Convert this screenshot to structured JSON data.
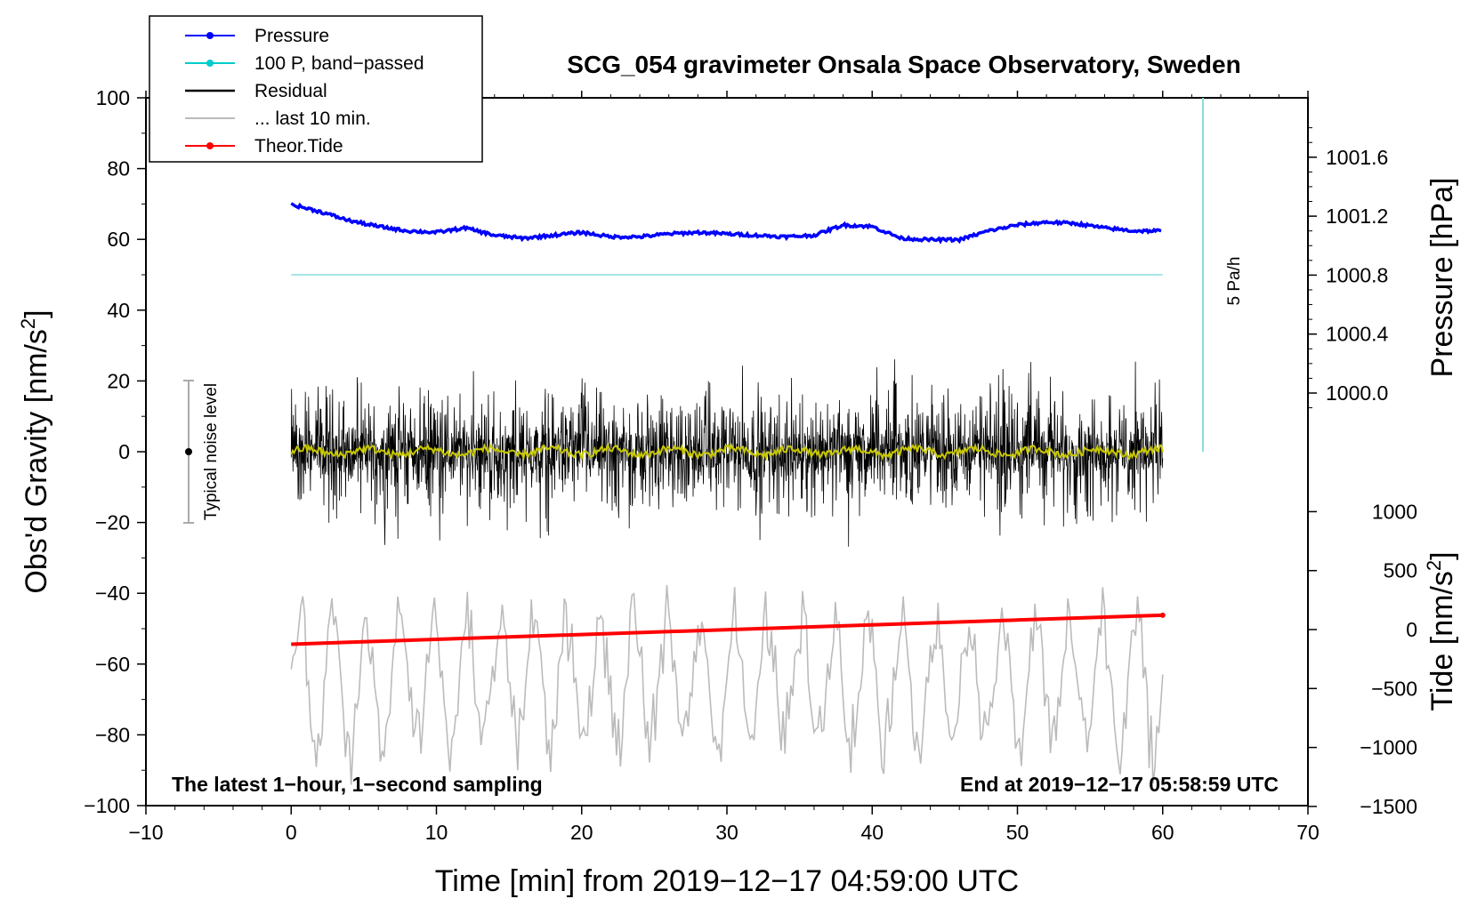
{
  "chart_data": {
    "type": "line",
    "title": "SCG_054 gravimeter Onsala Space Observatory, Sweden",
    "xlabel": "Time [min] from 2019−12−17 04:59:00 UTC",
    "ylabel_left": "Obs'd Gravity [nm/s",
    "ylabel_left_sup": "2",
    "ylabel_left_close": "]",
    "ylabel_right_pressure": "Pressure [hPa]",
    "ylabel_right_tide": "Tide [nm/s",
    "ylabel_right_tide_sup": "2",
    "ylabel_right_tide_close": "]",
    "xlim": [
      -10,
      70
    ],
    "ylim": [
      -100,
      100
    ],
    "x_ticks": [
      "−10",
      "0",
      "10",
      "20",
      "30",
      "40",
      "50",
      "60",
      "70"
    ],
    "y_ticks_left": [
      "100",
      "80",
      "60",
      "40",
      "20",
      "0",
      "−20",
      "−40",
      "−60",
      "−80",
      "−100"
    ],
    "pressure_ticks": [
      "1001.6",
      "1001.2",
      "1000.8",
      "1000.4",
      "1000.0"
    ],
    "tide_ticks": [
      "1000",
      "500",
      "0",
      "−500",
      "−1000",
      "−1500"
    ],
    "legend": [
      {
        "label": "Pressure",
        "color": "#0000ff",
        "marker": true
      },
      {
        "label": "100 P, band−passed",
        "color": "#00cccc",
        "marker": true
      },
      {
        "label": "Residual",
        "color": "#000000",
        "marker": false
      },
      {
        "label": "... last 10 min.",
        "color": "#bbbbbb",
        "marker": false
      },
      {
        "label": "Theor.Tide",
        "color": "#ff0000",
        "marker": true
      }
    ],
    "noise_label": "Typical noise level",
    "noise_range": [
      -20,
      20
    ],
    "rate_label": "5 Pa/h",
    "footer_left": "The latest 1−hour, 1−second sampling",
    "footer_right": "End at 2019−12−17 05:58:59 UTC",
    "series": [
      {
        "name": "Pressure (hPa)",
        "color": "#0000ff",
        "x": [
          0,
          2,
          4,
          6,
          8,
          10,
          12,
          14,
          16,
          18,
          20,
          22,
          24,
          26,
          28,
          30,
          32,
          34,
          36,
          38,
          40,
          42,
          44,
          46,
          48,
          50,
          52,
          54,
          56,
          58,
          60
        ],
        "values": [
          1001.28,
          1001.23,
          1001.17,
          1001.13,
          1001.1,
          1001.09,
          1001.12,
          1001.07,
          1001.05,
          1001.07,
          1001.09,
          1001.06,
          1001.06,
          1001.08,
          1001.09,
          1001.08,
          1001.07,
          1001.06,
          1001.07,
          1001.14,
          1001.13,
          1001.05,
          1001.04,
          1001.04,
          1001.1,
          1001.14,
          1001.16,
          1001.15,
          1001.12,
          1001.1,
          1001.1
        ]
      },
      {
        "name": "100 P, band-passed",
        "color": "#00cccc",
        "x": [
          0,
          60
        ],
        "values": [
          50,
          50
        ]
      },
      {
        "name": "Residual",
        "color": "#000000",
        "x_range": [
          0,
          60
        ],
        "amplitude": 18,
        "center": 0
      },
      {
        "name": "Residual smoothed",
        "color": "#c8c800",
        "x_range": [
          0,
          60
        ],
        "amplitude": 1.5,
        "center": 0
      },
      {
        "name": "... last 10 min.",
        "color": "#bbbbbb",
        "x_range": [
          0,
          60
        ],
        "amplitude": 16,
        "center": -65
      },
      {
        "name": "Theor.Tide (nm/s2)",
        "color": "#ff0000",
        "x": [
          0,
          60
        ],
        "values": [
          -124,
          122
        ]
      }
    ]
  }
}
